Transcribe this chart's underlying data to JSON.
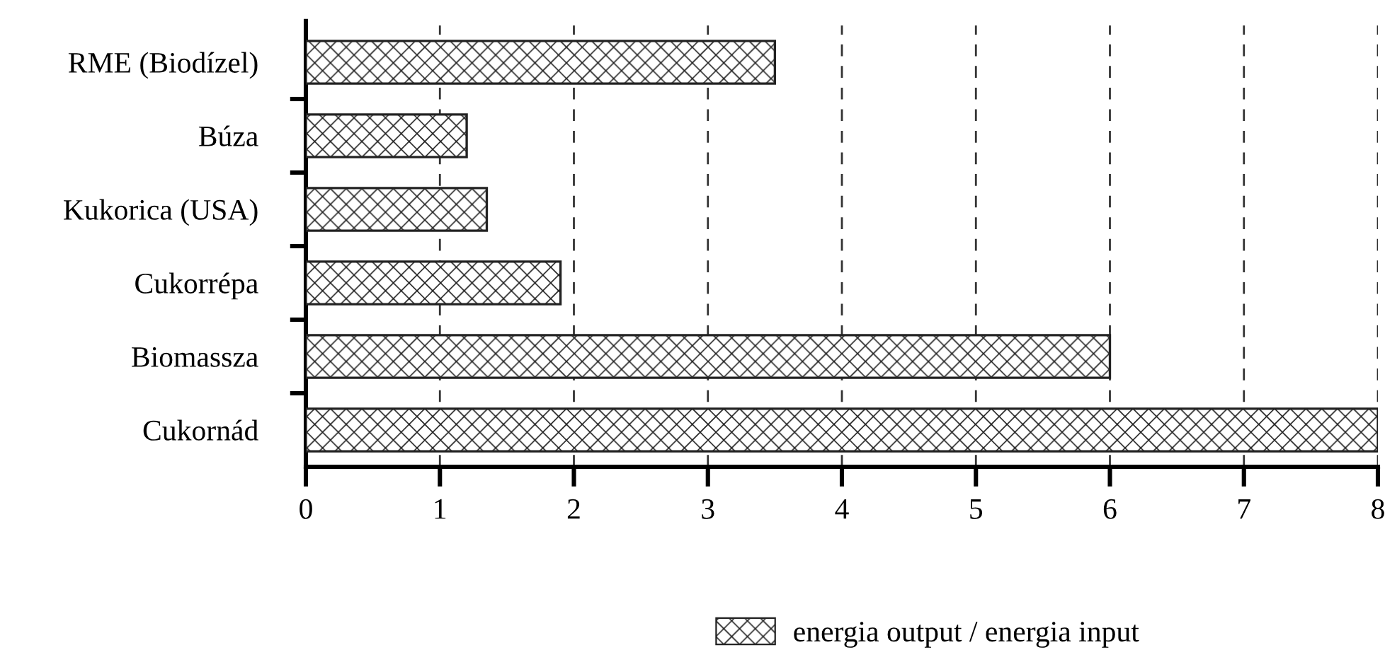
{
  "chart_data": {
    "type": "bar",
    "orientation": "horizontal",
    "categories": [
      "RME (Biodízel)",
      "Búza",
      "Kukorica (USA)",
      "Cukorrépa",
      "Biomassza",
      "Cukornád"
    ],
    "series": [
      {
        "name": "energia output / energia input",
        "color": "#222222",
        "values": [
          3.5,
          1.2,
          1.35,
          1.9,
          6,
          8
        ]
      }
    ],
    "xlim": [
      0,
      8
    ],
    "xticks": [
      0,
      1,
      2,
      3,
      4,
      5,
      6,
      7,
      8
    ],
    "grid": "x",
    "legend": "bottom"
  }
}
